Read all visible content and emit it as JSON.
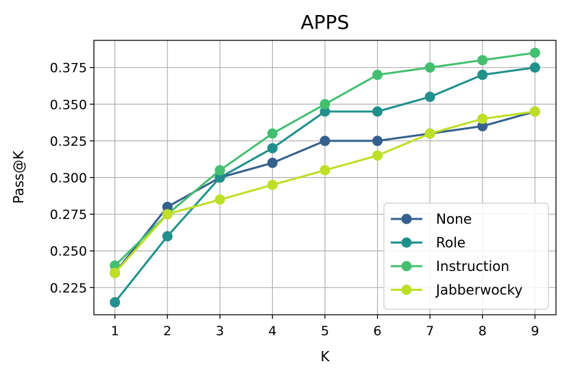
{
  "chart_data": {
    "type": "line",
    "title": "APPS",
    "xlabel": "K",
    "ylabel": "Pass@K",
    "x": [
      1,
      2,
      3,
      4,
      5,
      6,
      7,
      8,
      9
    ],
    "xlim": [
      0.6,
      9.4
    ],
    "ylim": [
      0.2065,
      0.3935
    ],
    "yticks": [
      0.225,
      0.25,
      0.275,
      0.3,
      0.325,
      0.35,
      0.375
    ],
    "ytick_labels": [
      "0.225",
      "0.250",
      "0.275",
      "0.300",
      "0.325",
      "0.350",
      "0.375"
    ],
    "xtick_labels": [
      "1",
      "2",
      "3",
      "4",
      "5",
      "6",
      "7",
      "8",
      "9"
    ],
    "grid": true,
    "legend_position": "lower-right",
    "series": [
      {
        "name": "None",
        "color": "#355f8d",
        "values": [
          0.235,
          0.28,
          0.3,
          0.31,
          0.325,
          0.325,
          0.33,
          0.335,
          0.345
        ]
      },
      {
        "name": "Role",
        "color": "#21908d",
        "values": [
          0.215,
          0.26,
          0.3,
          0.32,
          0.345,
          0.345,
          0.355,
          0.37,
          0.375
        ]
      },
      {
        "name": "Instruction",
        "color": "#44bf70",
        "values": [
          0.24,
          0.275,
          0.305,
          0.33,
          0.35,
          0.37,
          0.375,
          0.38,
          0.385
        ]
      },
      {
        "name": "Jabberwocky",
        "color": "#bddf26",
        "values": [
          0.235,
          0.275,
          0.285,
          0.295,
          0.305,
          0.315,
          0.33,
          0.34,
          0.345
        ]
      }
    ]
  }
}
